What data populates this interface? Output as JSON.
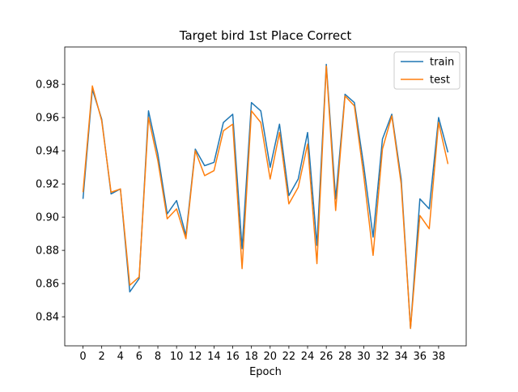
{
  "chart_data": {
    "type": "line",
    "title": "Target bird 1st Place Correct",
    "xlabel": "Epoch",
    "ylabel": "",
    "xlim": [
      -1.95,
      40.95
    ],
    "ylim": [
      0.8225,
      1.0025
    ],
    "xticks": [
      0,
      2,
      4,
      6,
      8,
      10,
      12,
      14,
      16,
      18,
      20,
      22,
      24,
      26,
      28,
      30,
      32,
      34,
      36,
      38
    ],
    "yticks": [
      0.84,
      0.86,
      0.88,
      0.9,
      0.92,
      0.94,
      0.96,
      0.98
    ],
    "ytick_labels": [
      "0.84",
      "0.86",
      "0.88",
      "0.90",
      "0.92",
      "0.94",
      "0.96",
      "0.98"
    ],
    "grid": false,
    "legend_position": "upper right",
    "x": [
      0,
      1,
      2,
      3,
      4,
      5,
      6,
      7,
      8,
      9,
      10,
      11,
      12,
      13,
      14,
      15,
      16,
      17,
      18,
      19,
      20,
      21,
      22,
      23,
      24,
      25,
      26,
      27,
      28,
      29,
      30,
      31,
      32,
      33,
      34,
      35,
      36,
      37,
      38,
      39
    ],
    "series": [
      {
        "name": "train",
        "color": "#1f77b4",
        "values": [
          0.911,
          0.977,
          0.959,
          0.914,
          0.917,
          0.855,
          0.863,
          0.964,
          0.938,
          0.902,
          0.91,
          0.889,
          0.941,
          0.931,
          0.933,
          0.957,
          0.962,
          0.881,
          0.969,
          0.964,
          0.93,
          0.956,
          0.913,
          0.923,
          0.951,
          0.883,
          0.992,
          0.911,
          0.974,
          0.969,
          0.931,
          0.888,
          0.947,
          0.962,
          0.923,
          0.833,
          0.911,
          0.905,
          0.96,
          0.939
        ]
      },
      {
        "name": "test",
        "color": "#ff7f0e",
        "values": [
          0.915,
          0.979,
          0.958,
          0.915,
          0.917,
          0.859,
          0.864,
          0.96,
          0.934,
          0.899,
          0.905,
          0.887,
          0.94,
          0.925,
          0.928,
          0.952,
          0.956,
          0.869,
          0.964,
          0.957,
          0.923,
          0.951,
          0.908,
          0.918,
          0.944,
          0.872,
          0.991,
          0.904,
          0.973,
          0.967,
          0.925,
          0.877,
          0.941,
          0.961,
          0.92,
          0.833,
          0.901,
          0.893,
          0.957,
          0.932
        ]
      }
    ]
  }
}
